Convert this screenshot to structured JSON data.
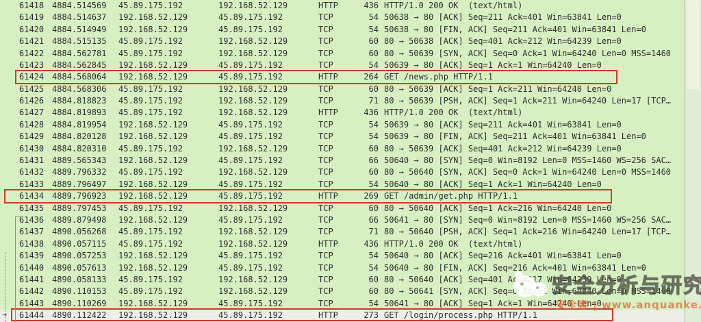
{
  "app": {
    "name": "Wireshark packet list"
  },
  "colors": {
    "row_background": "#d7f0c2",
    "selected_row_background": "#eceee7",
    "highlight_border": "#cf3a27",
    "text": "#2d2d2d",
    "watermark_orange": "#eb5f2d"
  },
  "icons": {
    "current_packet_arrow": "→"
  },
  "watermark": {
    "title": "安全分析与研究",
    "subtitle": "安全客 | www.anquanke.com"
  },
  "packets": [
    {
      "no": "61418",
      "time": "4884.514569",
      "source": "45.89.175.192",
      "destination": "192.168.52.129",
      "protocol": "HTTP",
      "length": "436",
      "info": "HTTP/1.0 200 OK  (text/html)",
      "highlighted": false,
      "selected": false
    },
    {
      "no": "61419",
      "time": "4884.514637",
      "source": "192.168.52.129",
      "destination": "45.89.175.192",
      "protocol": "TCP",
      "length": "54",
      "info": "50638 → 80 [ACK] Seq=211 Ack=401 Win=63841 Len=0",
      "highlighted": false,
      "selected": false
    },
    {
      "no": "61420",
      "time": "4884.514949",
      "source": "192.168.52.129",
      "destination": "45.89.175.192",
      "protocol": "TCP",
      "length": "54",
      "info": "50638 → 80 [FIN, ACK] Seq=211 Ack=401 Win=63841 Len=0",
      "highlighted": false,
      "selected": false
    },
    {
      "no": "61421",
      "time": "4884.515135",
      "source": "45.89.175.192",
      "destination": "192.168.52.129",
      "protocol": "TCP",
      "length": "60",
      "info": "80 → 50638 [ACK] Seq=401 Ack=212 Win=64239 Len=0",
      "highlighted": false,
      "selected": false
    },
    {
      "no": "61422",
      "time": "4884.562781",
      "source": "45.89.175.192",
      "destination": "192.168.52.129",
      "protocol": "TCP",
      "length": "60",
      "info": "80 → 50639 [SYN, ACK] Seq=0 Ack=1 Win=64240 Len=0 MSS=1460",
      "highlighted": false,
      "selected": false
    },
    {
      "no": "61423",
      "time": "4884.562845",
      "source": "192.168.52.129",
      "destination": "45.89.175.192",
      "protocol": "TCP",
      "length": "54",
      "info": "50639 → 80 [ACK] Seq=1 Ack=1 Win=64240 Len=0",
      "highlighted": false,
      "selected": false
    },
    {
      "no": "61424",
      "time": "4884.568064",
      "source": "192.168.52.129",
      "destination": "45.89.175.192",
      "protocol": "HTTP",
      "length": "264",
      "info": "GET /news.php HTTP/1.1",
      "highlighted": true,
      "selected": false
    },
    {
      "no": "61425",
      "time": "4884.568306",
      "source": "45.89.175.192",
      "destination": "192.168.52.129",
      "protocol": "TCP",
      "length": "60",
      "info": "80 → 50639 [ACK] Seq=1 Ack=211 Win=64240 Len=0",
      "highlighted": false,
      "selected": false
    },
    {
      "no": "61426",
      "time": "4884.818823",
      "source": "45.89.175.192",
      "destination": "192.168.52.129",
      "protocol": "TCP",
      "length": "71",
      "info": "80 → 50639 [PSH, ACK] Seq=1 Ack=211 Win=64240 Len=17 [TCP…",
      "highlighted": false,
      "selected": false
    },
    {
      "no": "61427",
      "time": "4884.819893",
      "source": "45.89.175.192",
      "destination": "192.168.52.129",
      "protocol": "HTTP",
      "length": "436",
      "info": "HTTP/1.0 200 OK  (text/html)",
      "highlighted": false,
      "selected": false
    },
    {
      "no": "61428",
      "time": "4884.819954",
      "source": "192.168.52.129",
      "destination": "45.89.175.192",
      "protocol": "TCP",
      "length": "54",
      "info": "50639 → 80 [ACK] Seq=211 Ack=401 Win=63841 Len=0",
      "highlighted": false,
      "selected": false
    },
    {
      "no": "61429",
      "time": "4884.820128",
      "source": "192.168.52.129",
      "destination": "45.89.175.192",
      "protocol": "TCP",
      "length": "54",
      "info": "50639 → 80 [FIN, ACK] Seq=211 Ack=401 Win=63841 Len=0",
      "highlighted": false,
      "selected": false
    },
    {
      "no": "61430",
      "time": "4884.820310",
      "source": "45.89.175.192",
      "destination": "192.168.52.129",
      "protocol": "TCP",
      "length": "60",
      "info": "80 → 50639 [ACK] Seq=401 Ack=212 Win=64239 Len=0",
      "highlighted": false,
      "selected": false
    },
    {
      "no": "61431",
      "time": "4889.565343",
      "source": "192.168.52.129",
      "destination": "45.89.175.192",
      "protocol": "TCP",
      "length": "66",
      "info": "50640 → 80 [SYN] Seq=0 Win=8192 Len=0 MSS=1460 WS=256 SAC…",
      "highlighted": false,
      "selected": false
    },
    {
      "no": "61432",
      "time": "4889.796332",
      "source": "45.89.175.192",
      "destination": "192.168.52.129",
      "protocol": "TCP",
      "length": "60",
      "info": "80 → 50640 [SYN, ACK] Seq=0 Ack=1 Win=64240 Len=0 MSS=1460",
      "highlighted": false,
      "selected": false
    },
    {
      "no": "61433",
      "time": "4889.796497",
      "source": "192.168.52.129",
      "destination": "45.89.175.192",
      "protocol": "TCP",
      "length": "54",
      "info": "50640 → 80 [ACK] Seq=1 Ack=1 Win=64240 Len=0",
      "highlighted": false,
      "selected": false
    },
    {
      "no": "61434",
      "time": "4889.796923",
      "source": "192.168.52.129",
      "destination": "45.89.175.192",
      "protocol": "HTTP",
      "length": "269",
      "info": "GET /admin/get.php HTTP/1.1",
      "highlighted": true,
      "selected": false
    },
    {
      "no": "61435",
      "time": "4889.797453",
      "source": "45.89.175.192",
      "destination": "192.168.52.129",
      "protocol": "TCP",
      "length": "60",
      "info": "80 → 50640 [ACK] Seq=1 Ack=216 Win=64240 Len=0",
      "highlighted": false,
      "selected": false
    },
    {
      "no": "61436",
      "time": "4889.879498",
      "source": "192.168.52.129",
      "destination": "45.89.175.192",
      "protocol": "TCP",
      "length": "66",
      "info": "50641 → 80 [SYN] Seq=0 Win=8192 Len=0 MSS=1460 WS=256 SAC…",
      "highlighted": false,
      "selected": false
    },
    {
      "no": "61437",
      "time": "4890.056268",
      "source": "45.89.175.192",
      "destination": "192.168.52.129",
      "protocol": "TCP",
      "length": "71",
      "info": "80 → 50640 [PSH, ACK] Seq=1 Ack=216 Win=64240 Len=17 [TCP…",
      "highlighted": false,
      "selected": false
    },
    {
      "no": "61438",
      "time": "4890.057115",
      "source": "45.89.175.192",
      "destination": "192.168.52.129",
      "protocol": "HTTP",
      "length": "436",
      "info": "HTTP/1.0 200 OK  (text/html)",
      "highlighted": false,
      "selected": false
    },
    {
      "no": "61439",
      "time": "4890.057253",
      "source": "192.168.52.129",
      "destination": "45.89.175.192",
      "protocol": "TCP",
      "length": "54",
      "info": "50640 → 80 [ACK] Seq=216 Ack=401 Win=63841 Len=0",
      "highlighted": false,
      "selected": false
    },
    {
      "no": "61440",
      "time": "4890.057613",
      "source": "192.168.52.129",
      "destination": "45.89.175.192",
      "protocol": "TCP",
      "length": "54",
      "info": "50640 → 80 [FIN, ACK] Seq=216 Ack=401 Win=63841 Len=0",
      "highlighted": false,
      "selected": false
    },
    {
      "no": "61441",
      "time": "4890.058133",
      "source": "45.89.175.192",
      "destination": "192.168.52.129",
      "protocol": "TCP",
      "length": "60",
      "info": "80 → 50640 [ACK] Seq=401 Ack=217 Win=64239 Len=0",
      "highlighted": false,
      "selected": false
    },
    {
      "no": "61442",
      "time": "4890.110153",
      "source": "45.89.175.192",
      "destination": "192.168.52.129",
      "protocol": "TCP",
      "length": "60",
      "info": "80 → 50641 [SYN, ACK] Seq=0 Ack=1 Win=64240 Len=0 MSS=1460",
      "highlighted": false,
      "selected": false
    },
    {
      "no": "61443",
      "time": "4890.110269",
      "source": "192.168.52.129",
      "destination": "45.89.175.192",
      "protocol": "TCP",
      "length": "54",
      "info": "50641 → 80 [ACK] Seq=1 Ack=1 Win=64240 Len=0",
      "highlighted": false,
      "selected": false
    },
    {
      "no": "61444",
      "time": "4890.112422",
      "source": "192.168.52.129",
      "destination": "45.89.175.192",
      "protocol": "HTTP",
      "length": "273",
      "info": "GET /login/process.php HTTP/1.1",
      "highlighted": true,
      "selected": true
    }
  ]
}
